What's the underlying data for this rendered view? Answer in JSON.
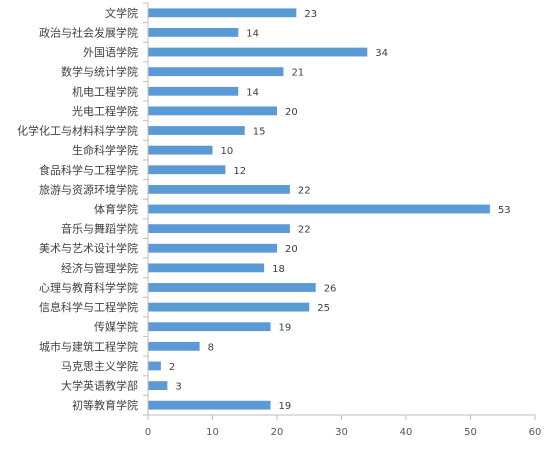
{
  "chart_data": {
    "type": "bar",
    "orientation": "horizontal",
    "categories": [
      "文学院",
      "政治与社会发展学院",
      "外国语学院",
      "数学与统计学院",
      "机电工程学院",
      "光电工程学院",
      "化学化工与材料科学学院",
      "生命科学学院",
      "食品科学与工程学院",
      "旅游与资源环境学院",
      "体育学院",
      "音乐与舞蹈学院",
      "美术与艺术设计学院",
      "经济与管理学院",
      "心理与教育科学学院",
      "信息科学与工程学院",
      "传媒学院",
      "城市与建筑工程学院",
      "马克思主义学院",
      "大学英语教学部",
      "初等教育学院"
    ],
    "values": [
      23,
      14,
      34,
      21,
      14,
      20,
      15,
      10,
      12,
      22,
      53,
      22,
      20,
      18,
      26,
      25,
      19,
      8,
      2,
      3,
      19
    ],
    "xlim": [
      0,
      60
    ],
    "xticks": [
      0,
      10,
      20,
      30,
      40,
      50,
      60
    ],
    "bar_color": "#5B9BD5",
    "axis_color": "#BFBFBF",
    "grid": false,
    "data_labels": true
  }
}
